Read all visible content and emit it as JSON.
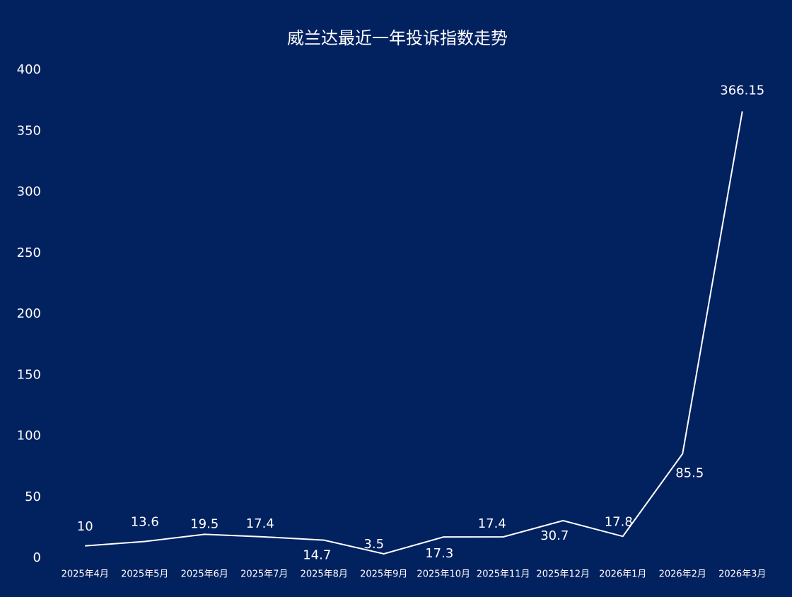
{
  "chart_data": {
    "type": "line",
    "title": "威兰达最近一年投诉指数走势",
    "categories": [
      "2025年4月",
      "2025年5月",
      "2025年6月",
      "2025年7月",
      "2025年8月",
      "2025年9月",
      "2025年10月",
      "2025年11月",
      "2025年12月",
      "2026年1月",
      "2026年2月",
      "2026年3月"
    ],
    "series": [
      {
        "name": "投诉指数",
        "color": "#ffffff",
        "values": [
          10,
          13.6,
          19.5,
          17.4,
          14.7,
          3.5,
          17.3,
          17.4,
          30.7,
          17.8,
          85.5,
          366.15
        ]
      }
    ],
    "ylim": [
      0,
      400
    ],
    "yticks": [
      0,
      50,
      100,
      150,
      200,
      250,
      300,
      350,
      400
    ],
    "grid": false,
    "legend": false
  }
}
